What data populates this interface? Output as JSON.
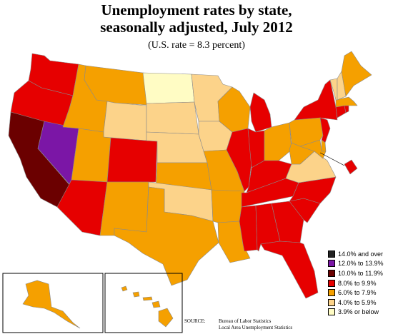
{
  "title_lines": [
    "Unemployment rates by state,",
    "seasonally adjusted, July 2012"
  ],
  "subtitle": "(U.S. rate = 8.3 percent)",
  "legend": [
    {
      "label": "14.0% and over",
      "color": "#222222"
    },
    {
      "label": "12.0% to 13.9%",
      "color": "#7b16a6"
    },
    {
      "label": "10.0% to 11.9%",
      "color": "#6b0000"
    },
    {
      "label": "8.0% to 9.9%",
      "color": "#e60000"
    },
    {
      "label": "6.0% to 7.9%",
      "color": "#f5a000"
    },
    {
      "label": "4.0% to 5.9%",
      "color": "#fcd38a"
    },
    {
      "label": "3.9% or below",
      "color": "#fffcc4"
    }
  ],
  "source": {
    "label": "SOURCE:",
    "lines": [
      "Bureau of Labor Statistics",
      "Local Area Unemployment Statistics"
    ]
  },
  "state_bins": {
    "WA": 3,
    "OR": 3,
    "CA": 2,
    "NV": 1,
    "ID": 4,
    "MT": 4,
    "WY": 5,
    "UT": 4,
    "AZ": 3,
    "CO": 3,
    "NM": 4,
    "ND": 6,
    "SD": 5,
    "NE": 5,
    "KS": 4,
    "OK": 5,
    "TX": 4,
    "MN": 5,
    "IA": 5,
    "MO": 4,
    "AR": 4,
    "LA": 4,
    "WI": 4,
    "IL": 3,
    "MI": 3,
    "IN": 3,
    "OH": 4,
    "KY": 3,
    "TN": 3,
    "MS": 3,
    "AL": 3,
    "GA": 3,
    "FL": 3,
    "SC": 3,
    "NC": 3,
    "VA": 5,
    "WV": 4,
    "PA": 4,
    "NY": 3,
    "VT": 5,
    "NH": 5,
    "ME": 4,
    "MA": 4,
    "RI": 3,
    "CT": 3,
    "NJ": 3,
    "DE": 4,
    "MD": 4,
    "DC": 3,
    "AK": 4,
    "HI": 4
  }
}
